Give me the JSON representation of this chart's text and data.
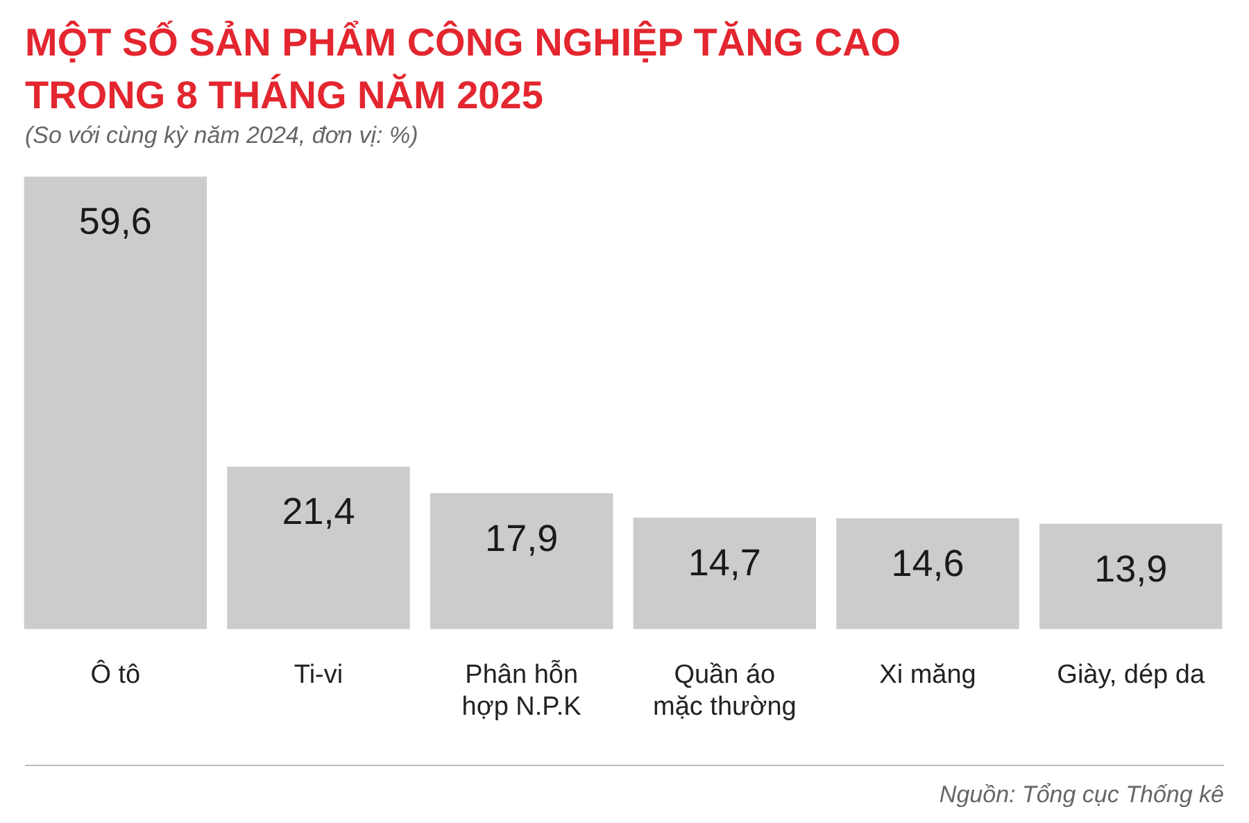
{
  "chart_data": {
    "type": "bar",
    "title": "MỘT SỐ SẢN PHẨM CÔNG NGHIỆP TĂNG CAO TRONG 8 THÁNG NĂM 2025",
    "subtitle": "(So với cùng kỳ năm 2024, đơn vị: %)",
    "categories": [
      "Ô tô",
      "Ti-vi",
      "Phân hỗn hợp N.P.K",
      "Quần áo mặc thường",
      "Xi măng",
      "Giày, dép da"
    ],
    "values": [
      59.6,
      21.4,
      17.9,
      14.7,
      14.6,
      13.9
    ],
    "value_labels": [
      "59,6",
      "21,4",
      "17,9",
      "14,7",
      "14,6",
      "13,9"
    ],
    "color": "#cdcccc",
    "legend": false,
    "grid": false,
    "annotations": [
      "Nguồn: Tổng cục Thống kê"
    ]
  }
}
